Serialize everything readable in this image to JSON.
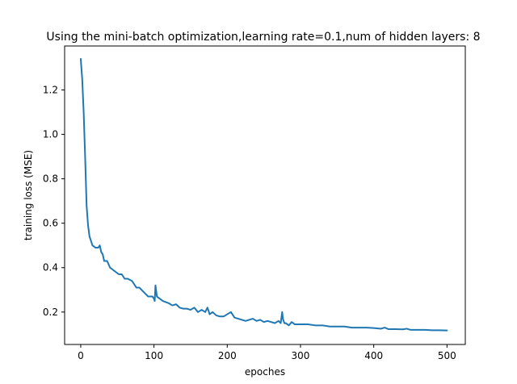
{
  "chart_data": {
    "type": "line",
    "title": "Using the mini-batch optimization,learning rate=0.1,num of hidden layers: 8",
    "xlabel": "epoches",
    "ylabel": "training loss (MSE)",
    "xlim": [
      -22,
      525
    ],
    "ylim": [
      0.054,
      1.398
    ],
    "x_ticks": [
      0,
      100,
      200,
      300,
      400,
      500
    ],
    "y_ticks": [
      0.2,
      0.4,
      0.6,
      0.8,
      1.0,
      1.2
    ],
    "x_tick_labels": [
      "0",
      "100",
      "200",
      "300",
      "400",
      "500"
    ],
    "y_tick_labels": [
      "0.2",
      "0.4",
      "0.6",
      "0.8",
      "1.0",
      "1.2"
    ],
    "grid": false,
    "series": [
      {
        "color": "#1f77b4",
        "x": [
          0,
          2,
          4,
          6,
          8,
          10,
          12,
          14,
          16,
          20,
          24,
          26,
          28,
          30,
          32,
          36,
          40,
          44,
          48,
          52,
          56,
          60,
          64,
          70,
          76,
          80,
          86,
          92,
          98,
          100,
          101,
          102,
          104,
          108,
          112,
          116,
          120,
          125,
          130,
          135,
          140,
          145,
          150,
          155,
          160,
          165,
          170,
          173,
          176,
          180,
          185,
          190,
          195,
          200,
          205,
          210,
          215,
          220,
          225,
          230,
          235,
          240,
          245,
          250,
          255,
          260,
          265,
          270,
          273,
          275,
          276,
          278,
          280,
          284,
          288,
          292,
          296,
          300,
          310,
          320,
          330,
          340,
          350,
          360,
          370,
          380,
          390,
          400,
          410,
          415,
          420,
          430,
          440,
          445,
          450,
          460,
          470,
          480,
          490,
          500
        ],
        "y": [
          1.34,
          1.25,
          1.1,
          0.9,
          0.68,
          0.59,
          0.54,
          0.52,
          0.5,
          0.49,
          0.49,
          0.5,
          0.47,
          0.46,
          0.43,
          0.43,
          0.4,
          0.39,
          0.38,
          0.37,
          0.37,
          0.35,
          0.35,
          0.34,
          0.31,
          0.31,
          0.29,
          0.27,
          0.27,
          0.26,
          0.25,
          0.32,
          0.27,
          0.26,
          0.25,
          0.245,
          0.24,
          0.23,
          0.235,
          0.22,
          0.215,
          0.215,
          0.21,
          0.22,
          0.2,
          0.21,
          0.2,
          0.22,
          0.19,
          0.2,
          0.185,
          0.18,
          0.18,
          0.19,
          0.2,
          0.175,
          0.17,
          0.165,
          0.16,
          0.165,
          0.17,
          0.16,
          0.165,
          0.155,
          0.16,
          0.155,
          0.15,
          0.16,
          0.15,
          0.2,
          0.17,
          0.15,
          0.15,
          0.14,
          0.155,
          0.145,
          0.145,
          0.145,
          0.145,
          0.14,
          0.14,
          0.135,
          0.135,
          0.135,
          0.13,
          0.13,
          0.13,
          0.128,
          0.125,
          0.13,
          0.123,
          0.123,
          0.122,
          0.125,
          0.12,
          0.12,
          0.12,
          0.118,
          0.118,
          0.117
        ]
      }
    ]
  }
}
